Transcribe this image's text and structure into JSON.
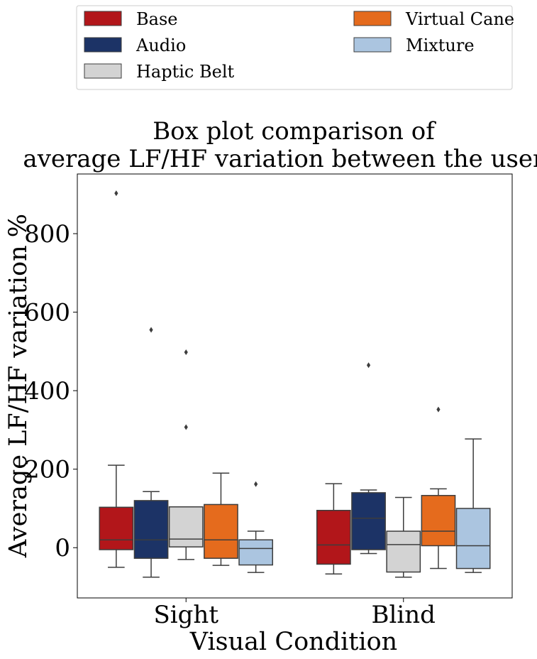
{
  "chart_data": {
    "type": "box",
    "title_lines": [
      "Box plot comparison of",
      "average LF/HF variation between the users."
    ],
    "xlabel": "Visual Condition",
    "ylabel": "Average LF/HF variation %",
    "ylim": [
      -128,
      952
    ],
    "yticks": [
      0,
      200,
      400,
      600,
      800
    ],
    "grid": false,
    "legend_position": "top",
    "categories": [
      "Sight",
      "Blind"
    ],
    "series": [
      {
        "name": "Base",
        "color": "#b2161a",
        "boxes": [
          {
            "whisker_low": -50,
            "q1": -5,
            "median": 20,
            "q3": 103,
            "whisker_high": 210,
            "outliers": [
              903
            ]
          },
          {
            "whisker_low": -67,
            "q1": -42,
            "median": 7,
            "q3": 95,
            "whisker_high": 163,
            "outliers": []
          }
        ]
      },
      {
        "name": "Audio",
        "color": "#1c3366",
        "boxes": [
          {
            "whisker_low": -75,
            "q1": -27,
            "median": 20,
            "q3": 120,
            "whisker_high": 143,
            "outliers": [
              555
            ]
          },
          {
            "whisker_low": -15,
            "q1": -5,
            "median": 75,
            "q3": 140,
            "whisker_high": 147,
            "outliers": [
              465
            ]
          }
        ]
      },
      {
        "name": "Haptic Belt",
        "color": "#d3d3d3",
        "boxes": [
          {
            "whisker_low": -30,
            "q1": 2,
            "median": 22,
            "q3": 104,
            "whisker_high": 104,
            "outliers": [
              307,
              498
            ]
          },
          {
            "whisker_low": -75,
            "q1": -62,
            "median": 8,
            "q3": 42,
            "whisker_high": 128,
            "outliers": []
          }
        ]
      },
      {
        "name": "Virtual Cane",
        "color": "#e56b1d",
        "boxes": [
          {
            "whisker_low": -45,
            "q1": -27,
            "median": 20,
            "q3": 110,
            "whisker_high": 190,
            "outliers": []
          },
          {
            "whisker_low": -53,
            "q1": 5,
            "median": 42,
            "q3": 133,
            "whisker_high": 150,
            "outliers": [
              352
            ]
          }
        ]
      },
      {
        "name": "Mixture",
        "color": "#abc5e0",
        "boxes": [
          {
            "whisker_low": -63,
            "q1": -44,
            "median": -2,
            "q3": 20,
            "whisker_high": 42,
            "outliers": [
              162
            ]
          },
          {
            "whisker_low": -63,
            "q1": -53,
            "median": 5,
            "q3": 100,
            "whisker_high": 277,
            "outliers": []
          }
        ]
      }
    ]
  }
}
